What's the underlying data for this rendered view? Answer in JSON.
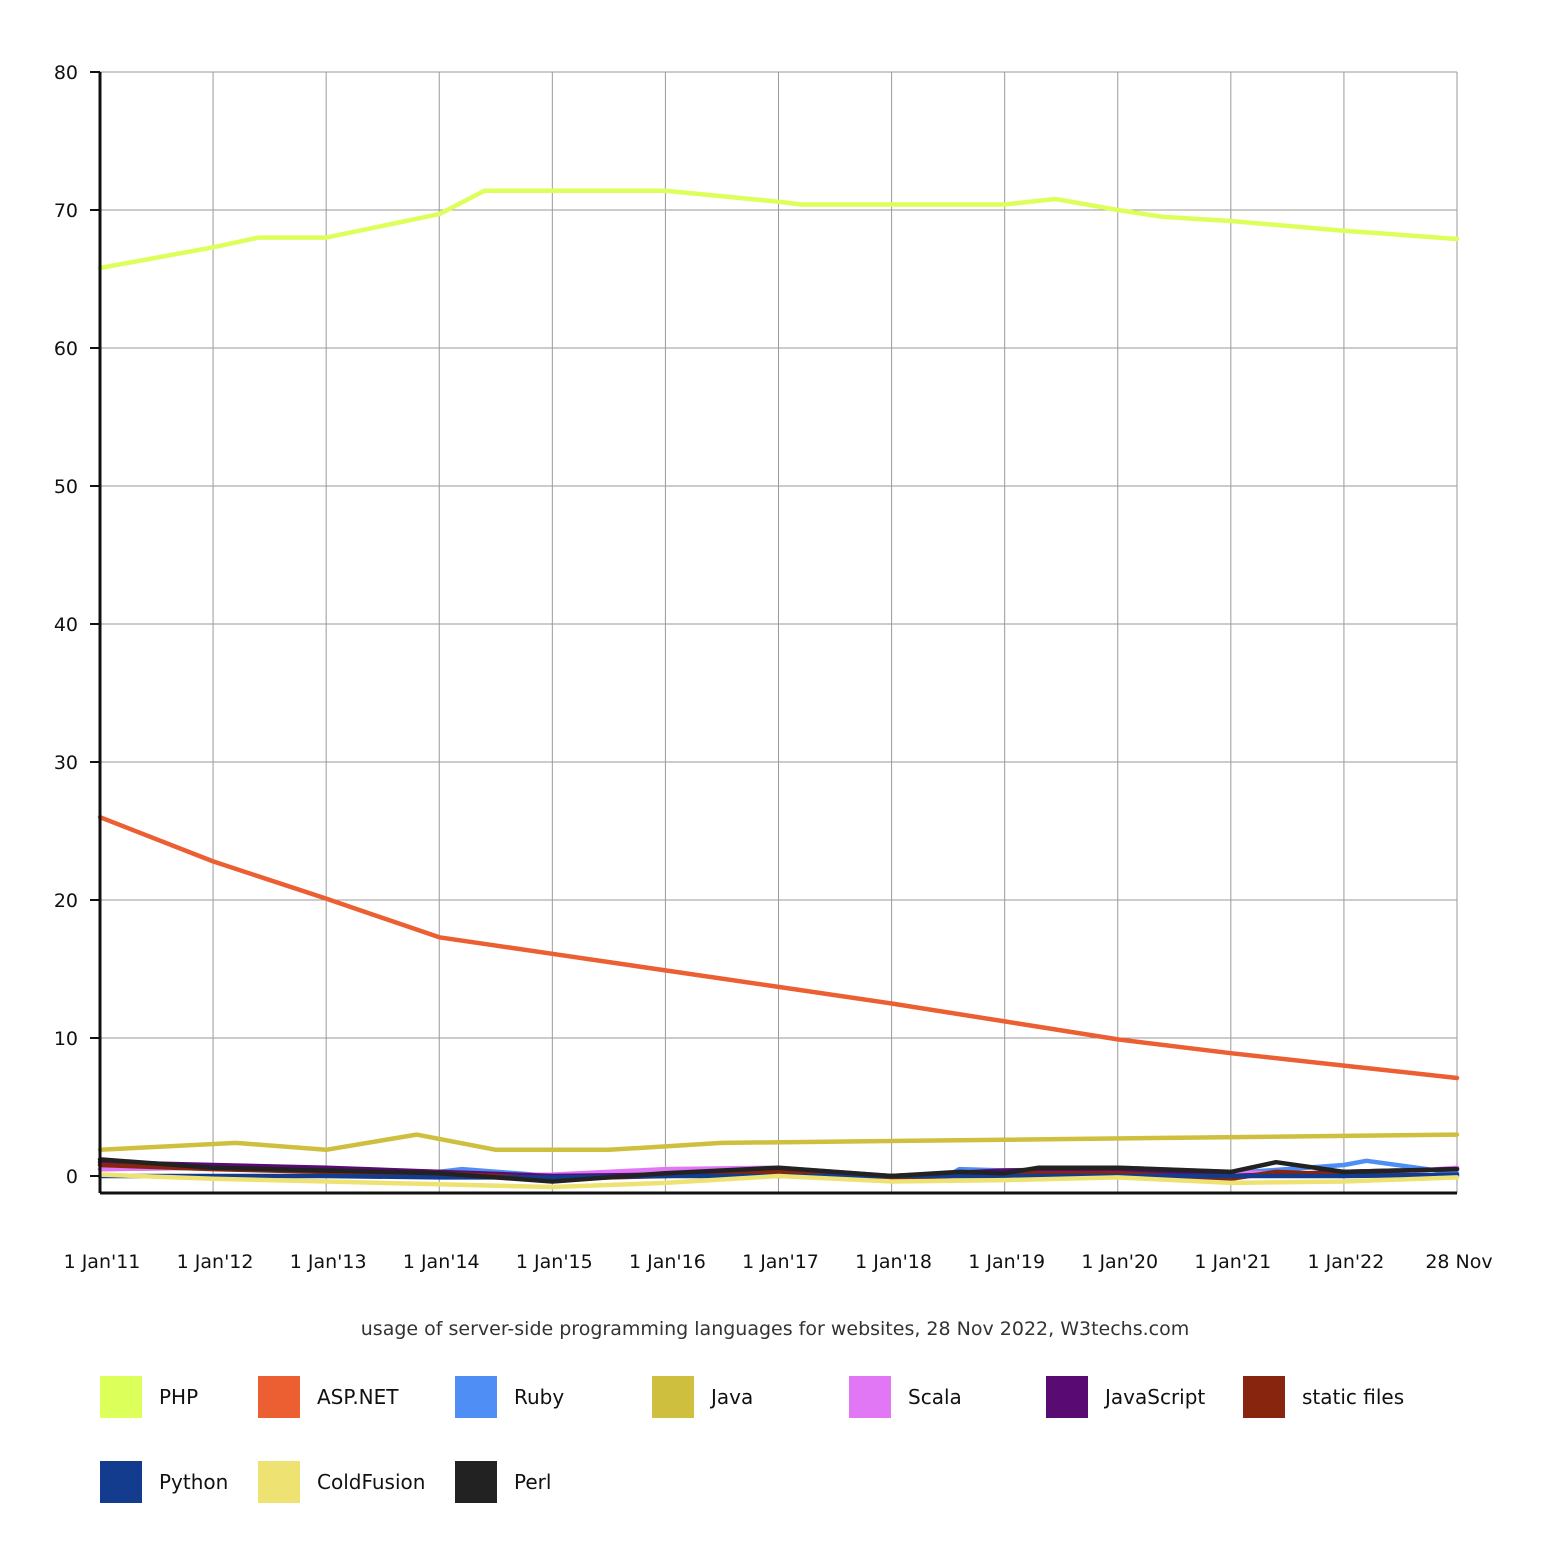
{
  "chart_data": {
    "type": "line",
    "title": "",
    "caption": "usage of server-side programming languages for websites, 28 Nov 2022, W3techs.com",
    "xlabel": "",
    "ylabel": "",
    "x": [
      "1 Jan'11",
      "1 Jan'12",
      "1 Jan'13",
      "1 Jan'14",
      "1 Jan'15",
      "1 Jan'16",
      "1 Jan'17",
      "1 Jan'18",
      "1 Jan'19",
      "1 Jan'20",
      "1 Jan'21",
      "1 Jan'22",
      "28 Nov"
    ],
    "ylim": [
      0,
      80
    ],
    "yticks": [
      0,
      10,
      20,
      30,
      40,
      50,
      60,
      70,
      80
    ],
    "grid": true,
    "legend_position": "bottom",
    "series": [
      {
        "name": "PHP",
        "color": "#ddff5a",
        "points": [
          [
            0,
            65.8
          ],
          [
            1,
            67.3
          ],
          [
            1.4,
            68.0
          ],
          [
            2,
            68.0
          ],
          [
            3,
            69.7
          ],
          [
            3.4,
            71.4
          ],
          [
            5,
            71.4
          ],
          [
            6,
            70.6
          ],
          [
            6.2,
            70.4
          ],
          [
            8,
            70.4
          ],
          [
            8.45,
            70.8
          ],
          [
            9,
            70.0
          ],
          [
            9.4,
            69.5
          ],
          [
            10,
            69.2
          ],
          [
            11,
            68.5
          ],
          [
            12,
            67.9
          ]
        ]
      },
      {
        "name": "ASP.NET",
        "color": "#ec5f32",
        "points": [
          [
            0,
            26.0
          ],
          [
            1,
            22.8
          ],
          [
            2,
            20.1
          ],
          [
            3,
            17.3
          ],
          [
            4,
            16.1
          ],
          [
            5,
            14.9
          ],
          [
            6,
            13.7
          ],
          [
            7,
            12.5
          ],
          [
            8,
            11.2
          ],
          [
            9,
            9.9
          ],
          [
            10,
            8.9
          ],
          [
            11,
            8.0
          ],
          [
            12,
            7.1
          ]
        ]
      },
      {
        "name": "Ruby",
        "color": "#4f8ef5",
        "points": [
          [
            0,
            0.5
          ],
          [
            1,
            0.6
          ],
          [
            2,
            0.5
          ],
          [
            3,
            0.3
          ],
          [
            3.2,
            0.5
          ],
          [
            4,
            0.0
          ],
          [
            5,
            0.3
          ],
          [
            6,
            0.4
          ],
          [
            7,
            0.0
          ],
          [
            7.5,
            0.0
          ],
          [
            7.6,
            0.5
          ],
          [
            8,
            0.4
          ],
          [
            9,
            0.6
          ],
          [
            10,
            0.2
          ],
          [
            11,
            0.8
          ],
          [
            11.2,
            1.1
          ],
          [
            12,
            0.2
          ]
        ]
      },
      {
        "name": "Java",
        "color": "#cfbf3f",
        "points": [
          [
            0,
            1.9
          ],
          [
            1.2,
            2.4
          ],
          [
            2,
            1.9
          ],
          [
            2.8,
            3.0
          ],
          [
            3.5,
            1.9
          ],
          [
            4.5,
            1.9
          ],
          [
            5.5,
            2.4
          ],
          [
            12,
            3.0
          ]
        ]
      },
      {
        "name": "Scala",
        "color": "#e277f5",
        "points": [
          [
            0,
            0.5
          ],
          [
            1,
            0.6
          ],
          [
            2,
            0.3
          ],
          [
            3,
            0.0
          ],
          [
            4,
            0.1
          ],
          [
            5,
            0.5
          ],
          [
            6,
            0.6
          ],
          [
            7,
            0.0
          ],
          [
            8,
            0.3
          ],
          [
            9,
            0.6
          ],
          [
            10,
            0.3
          ],
          [
            11,
            0.0
          ],
          [
            12,
            0.6
          ]
        ]
      },
      {
        "name": "JavaScript",
        "color": "#5a0a73",
        "points": [
          [
            0,
            1.0
          ],
          [
            1,
            0.8
          ],
          [
            2,
            0.6
          ],
          [
            3,
            0.3
          ],
          [
            4,
            0.0
          ],
          [
            5,
            0.1
          ],
          [
            6,
            0.2
          ],
          [
            7,
            0.0
          ],
          [
            8,
            0.4
          ],
          [
            9,
            0.5
          ],
          [
            10,
            0.0
          ],
          [
            11,
            0.3
          ],
          [
            12,
            0.5
          ]
        ]
      },
      {
        "name": "static files",
        "color": "#88250f",
        "points": [
          [
            0,
            0.8
          ],
          [
            1,
            0.5
          ],
          [
            2,
            0.3
          ],
          [
            3,
            0.2
          ],
          [
            4,
            -0.2
          ],
          [
            5,
            0.0
          ],
          [
            6,
            0.3
          ],
          [
            7,
            -0.2
          ],
          [
            8,
            0.2
          ],
          [
            9,
            0.2
          ],
          [
            10,
            -0.2
          ],
          [
            10.4,
            0.3
          ],
          [
            11,
            0.1
          ],
          [
            12,
            0.0
          ]
        ]
      },
      {
        "name": "Python",
        "color": "#133b8e",
        "points": [
          [
            0,
            0.0
          ],
          [
            1,
            0.0
          ],
          [
            2,
            0.0
          ],
          [
            3,
            -0.1
          ],
          [
            4,
            -0.1
          ],
          [
            5,
            0.0
          ],
          [
            6,
            0.0
          ],
          [
            7,
            0.0
          ],
          [
            8,
            0.0
          ],
          [
            9,
            0.0
          ],
          [
            10,
            0.0
          ],
          [
            11,
            0.0
          ],
          [
            12,
            0.1
          ]
        ]
      },
      {
        "name": "ColdFusion",
        "color": "#ede272",
        "points": [
          [
            0,
            0.1
          ],
          [
            1,
            -0.2
          ],
          [
            2,
            -0.4
          ],
          [
            3,
            -0.6
          ],
          [
            4,
            -0.8
          ],
          [
            5,
            -0.5
          ],
          [
            6,
            0.0
          ],
          [
            7,
            -0.4
          ],
          [
            8,
            -0.3
          ],
          [
            9,
            -0.1
          ],
          [
            10,
            -0.5
          ],
          [
            11,
            -0.4
          ],
          [
            12,
            -0.1
          ]
        ]
      },
      {
        "name": "Perl",
        "color": "#222222",
        "points": [
          [
            0,
            1.2
          ],
          [
            1,
            0.6
          ],
          [
            2,
            0.4
          ],
          [
            3,
            0.2
          ],
          [
            4,
            -0.4
          ],
          [
            5,
            0.2
          ],
          [
            6,
            0.6
          ],
          [
            7,
            0.0
          ],
          [
            7.6,
            0.3
          ],
          [
            8,
            0.2
          ],
          [
            8.3,
            0.6
          ],
          [
            9,
            0.6
          ],
          [
            10,
            0.3
          ],
          [
            10.4,
            1.0
          ],
          [
            11,
            0.3
          ],
          [
            12,
            0.5
          ]
        ]
      }
    ]
  }
}
